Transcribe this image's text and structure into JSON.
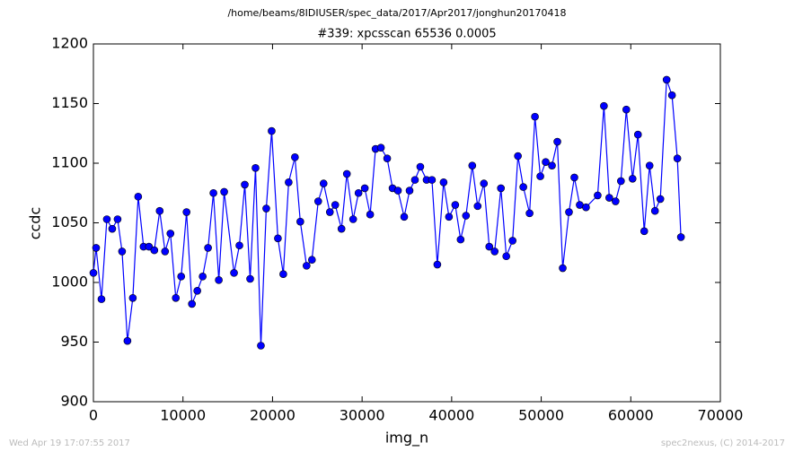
{
  "chart_data": {
    "type": "line",
    "suptitle": "/home/beams/8IDIUSER/spec_data/2017/Apr2017/jonghun20170418",
    "title": "#339: xpcsscan 65536 0.0005",
    "xlabel": "img_n",
    "ylabel": "ccdc",
    "footer_left": "Wed Apr 19 17:07:55 2017",
    "footer_right": "spec2nexus, (C) 2014-2017",
    "xlim": [
      0,
      70000
    ],
    "xticks": [
      0,
      10000,
      20000,
      30000,
      40000,
      50000,
      60000,
      70000
    ],
    "ylim": [
      900,
      1200
    ],
    "yticks": [
      900,
      950,
      1000,
      1050,
      1100,
      1150,
      1200
    ],
    "x": [
      0,
      300,
      900,
      1500,
      2100,
      2700,
      3200,
      3800,
      4400,
      5000,
      5600,
      6200,
      6800,
      7400,
      8000,
      8600,
      9200,
      9800,
      10400,
      11000,
      11600,
      12200,
      12800,
      13400,
      14000,
      14600,
      15700,
      16300,
      16900,
      17500,
      18100,
      18700,
      19300,
      19900,
      20600,
      21200,
      21800,
      22500,
      23100,
      23800,
      24400,
      25100,
      25700,
      26400,
      27000,
      27700,
      28300,
      29000,
      29600,
      30300,
      30900,
      31500,
      32100,
      32800,
      33400,
      34000,
      34700,
      35300,
      35900,
      36500,
      37200,
      37800,
      38400,
      39100,
      39700,
      40400,
      41000,
      41600,
      42300,
      42900,
      43600,
      44200,
      44800,
      45500,
      46100,
      46800,
      47400,
      48000,
      48700,
      49300,
      49900,
      50500,
      51200,
      51800,
      52400,
      53100,
      53700,
      54300,
      55000,
      56300,
      57000,
      57600,
      58300,
      58900,
      59500,
      60200,
      60800,
      61500,
      62100,
      62700,
      63300,
      64000,
      64600,
      65200,
      65600
    ],
    "series": [
      {
        "color": "#0000ff",
        "values": [
          1008,
          1029,
          986,
          1053,
          1045,
          1053,
          1026,
          951,
          987,
          1072,
          1030,
          1030,
          1027,
          1060,
          1026,
          1041,
          987,
          1005,
          1059,
          982,
          993,
          1005,
          1029,
          1075,
          1002,
          1076,
          1008,
          1031,
          1082,
          1003,
          1096,
          947,
          1062,
          1127,
          1037,
          1007,
          1084,
          1105,
          1051,
          1014,
          1019,
          1068,
          1083,
          1059,
          1065,
          1045,
          1091,
          1053,
          1075,
          1079,
          1057,
          1112,
          1113,
          1104,
          1079,
          1077,
          1055,
          1077,
          1086,
          1097,
          1086,
          1086,
          1015,
          1084,
          1055,
          1065,
          1036,
          1056,
          1098,
          1064,
          1083,
          1030,
          1026,
          1079,
          1022,
          1035,
          1106,
          1080,
          1058,
          1139,
          1089,
          1101,
          1098,
          1118,
          1012,
          1059,
          1088,
          1065,
          1063,
          1073,
          1148,
          1071,
          1068,
          1085,
          1145,
          1087,
          1124,
          1043,
          1098,
          1060,
          1070,
          1170,
          1157,
          1104,
          1038
        ]
      }
    ]
  }
}
